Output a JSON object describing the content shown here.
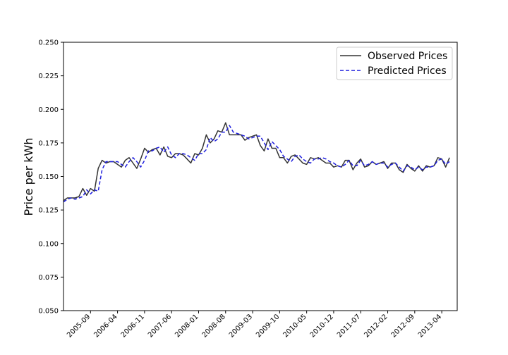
{
  "chart_data": {
    "type": "line",
    "title": "",
    "xlabel": "",
    "ylabel": "Price per kWh",
    "ylim": [
      0.05,
      0.25
    ],
    "yticks": [
      "0.050",
      "0.075",
      "0.100",
      "0.125",
      "0.150",
      "0.175",
      "0.200",
      "0.225",
      "0.250"
    ],
    "xlim": [
      "2005-02",
      "2013-08"
    ],
    "xticks": [
      "2005-09",
      "2006-04",
      "2006-11",
      "2007-06",
      "2008-01",
      "2008-08",
      "2009-03",
      "2009-10",
      "2010-05",
      "2010-12",
      "2011-07",
      "2012-02",
      "2012-09",
      "2013-04"
    ],
    "grid": false,
    "legend_position": "top-right",
    "x_start": "2005-02",
    "colors": {
      "observed": "#333333",
      "predicted": "#1f1fdd"
    },
    "series": [
      {
        "name": "Observed Prices",
        "style": "solid",
        "values": [
          0.132,
          0.134,
          0.134,
          0.134,
          0.135,
          0.141,
          0.136,
          0.141,
          0.139,
          0.156,
          0.162,
          0.16,
          0.161,
          0.161,
          0.159,
          0.157,
          0.162,
          0.164,
          0.16,
          0.156,
          0.163,
          0.171,
          0.168,
          0.17,
          0.171,
          0.166,
          0.172,
          0.165,
          0.164,
          0.167,
          0.167,
          0.166,
          0.163,
          0.16,
          0.167,
          0.166,
          0.171,
          0.181,
          0.175,
          0.178,
          0.184,
          0.183,
          0.19,
          0.181,
          0.181,
          0.181,
          0.181,
          0.177,
          0.179,
          0.18,
          0.181,
          0.173,
          0.169,
          0.178,
          0.171,
          0.171,
          0.164,
          0.164,
          0.16,
          0.165,
          0.166,
          0.163,
          0.16,
          0.159,
          0.164,
          0.163,
          0.164,
          0.162,
          0.16,
          0.16,
          0.157,
          0.158,
          0.157,
          0.162,
          0.162,
          0.155,
          0.16,
          0.163,
          0.157,
          0.158,
          0.161,
          0.159,
          0.16,
          0.161,
          0.156,
          0.16,
          0.16,
          0.155,
          0.153,
          0.159,
          0.156,
          0.154,
          0.158,
          0.154,
          0.158,
          0.157,
          0.158,
          0.164,
          0.163,
          0.157,
          0.164
        ]
      },
      {
        "name": "Predicted Prices",
        "style": "dashed",
        "values": [
          0.131,
          0.133,
          0.134,
          0.133,
          0.134,
          0.135,
          0.14,
          0.137,
          0.14,
          0.139,
          0.155,
          0.161,
          0.161,
          0.161,
          0.161,
          0.159,
          0.157,
          0.161,
          0.164,
          0.161,
          0.157,
          0.162,
          0.169,
          0.169,
          0.171,
          0.172,
          0.168,
          0.172,
          0.166,
          0.164,
          0.167,
          0.167,
          0.166,
          0.164,
          0.162,
          0.167,
          0.167,
          0.17,
          0.179,
          0.176,
          0.178,
          0.183,
          0.183,
          0.188,
          0.183,
          0.182,
          0.181,
          0.18,
          0.178,
          0.179,
          0.18,
          0.18,
          0.175,
          0.17,
          0.176,
          0.173,
          0.17,
          0.165,
          0.163,
          0.161,
          0.165,
          0.166,
          0.163,
          0.161,
          0.16,
          0.163,
          0.163,
          0.164,
          0.163,
          0.161,
          0.16,
          0.158,
          0.157,
          0.159,
          0.162,
          0.158,
          0.158,
          0.162,
          0.158,
          0.159,
          0.161,
          0.159,
          0.16,
          0.16,
          0.157,
          0.159,
          0.16,
          0.157,
          0.154,
          0.158,
          0.157,
          0.155,
          0.157,
          0.155,
          0.157,
          0.157,
          0.158,
          0.162,
          0.163,
          0.159,
          0.161
        ]
      }
    ]
  }
}
